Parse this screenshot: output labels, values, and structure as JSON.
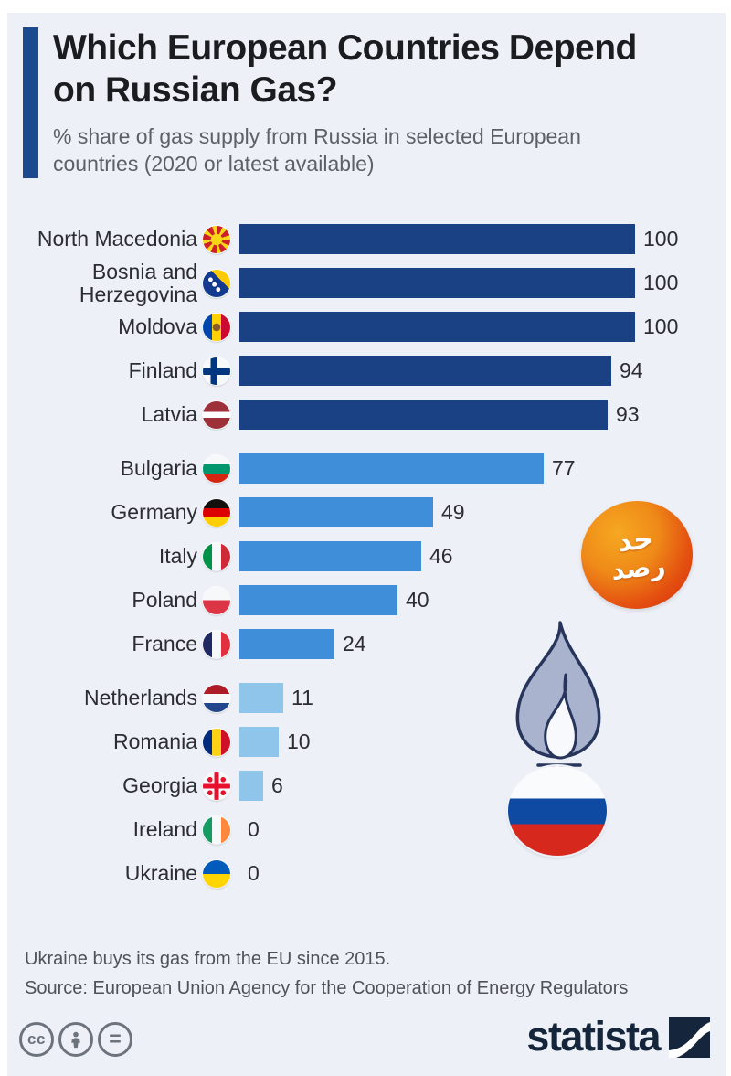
{
  "header": {
    "title": "Which European Countries Depend on Russian Gas?",
    "subtitle": "% share of gas supply from Russia in selected European countries (2020 or latest available)"
  },
  "chart_data": {
    "type": "bar",
    "orientation": "horizontal",
    "title": "Which European Countries Depend on Russian Gas?",
    "xlabel": "% share of gas supply from Russia",
    "xlim": [
      0,
      100
    ],
    "grid": false,
    "group_colors": [
      "#1a4183",
      "#3e8ed9",
      "#8fc4eb"
    ],
    "rows": [
      {
        "country": "North Macedonia",
        "flag": "north-macedonia",
        "value": 100,
        "group": 1
      },
      {
        "country": "Bosnia and Herzegovina",
        "flag": "bosnia-and-herzegovina",
        "value": 100,
        "group": 1
      },
      {
        "country": "Moldova",
        "flag": "moldova",
        "value": 100,
        "group": 1
      },
      {
        "country": "Finland",
        "flag": "finland",
        "value": 94,
        "group": 1
      },
      {
        "country": "Latvia",
        "flag": "latvia",
        "value": 93,
        "group": 1
      },
      {
        "country": "Bulgaria",
        "flag": "bulgaria",
        "value": 77,
        "group": 2
      },
      {
        "country": "Germany",
        "flag": "germany",
        "value": 49,
        "group": 2
      },
      {
        "country": "Italy",
        "flag": "italy",
        "value": 46,
        "group": 2
      },
      {
        "country": "Poland",
        "flag": "poland",
        "value": 40,
        "group": 2
      },
      {
        "country": "France",
        "flag": "france",
        "value": 24,
        "group": 2
      },
      {
        "country": "Netherlands",
        "flag": "netherlands",
        "value": 11,
        "group": 3
      },
      {
        "country": "Romania",
        "flag": "romania",
        "value": 10,
        "group": 3
      },
      {
        "country": "Georgia",
        "flag": "georgia",
        "value": 6,
        "group": 3
      },
      {
        "country": "Ireland",
        "flag": "ireland",
        "value": 0,
        "group": 3
      },
      {
        "country": "Ukraine",
        "flag": "ukraine",
        "value": 0,
        "group": 3
      }
    ]
  },
  "decorations": {
    "watermark": {
      "line1": "حد",
      "line2": "رصد"
    },
    "flame_color": "#a9b3cd",
    "flame_outline": "#27355c"
  },
  "footer": {
    "note": "Ukraine buys its gas from the EU since 2015.",
    "source": "Source: European Union Agency for the Cooperation of Energy Regulators",
    "cc_glyph": "cc",
    "nd_glyph": "=",
    "brand": "statista"
  }
}
